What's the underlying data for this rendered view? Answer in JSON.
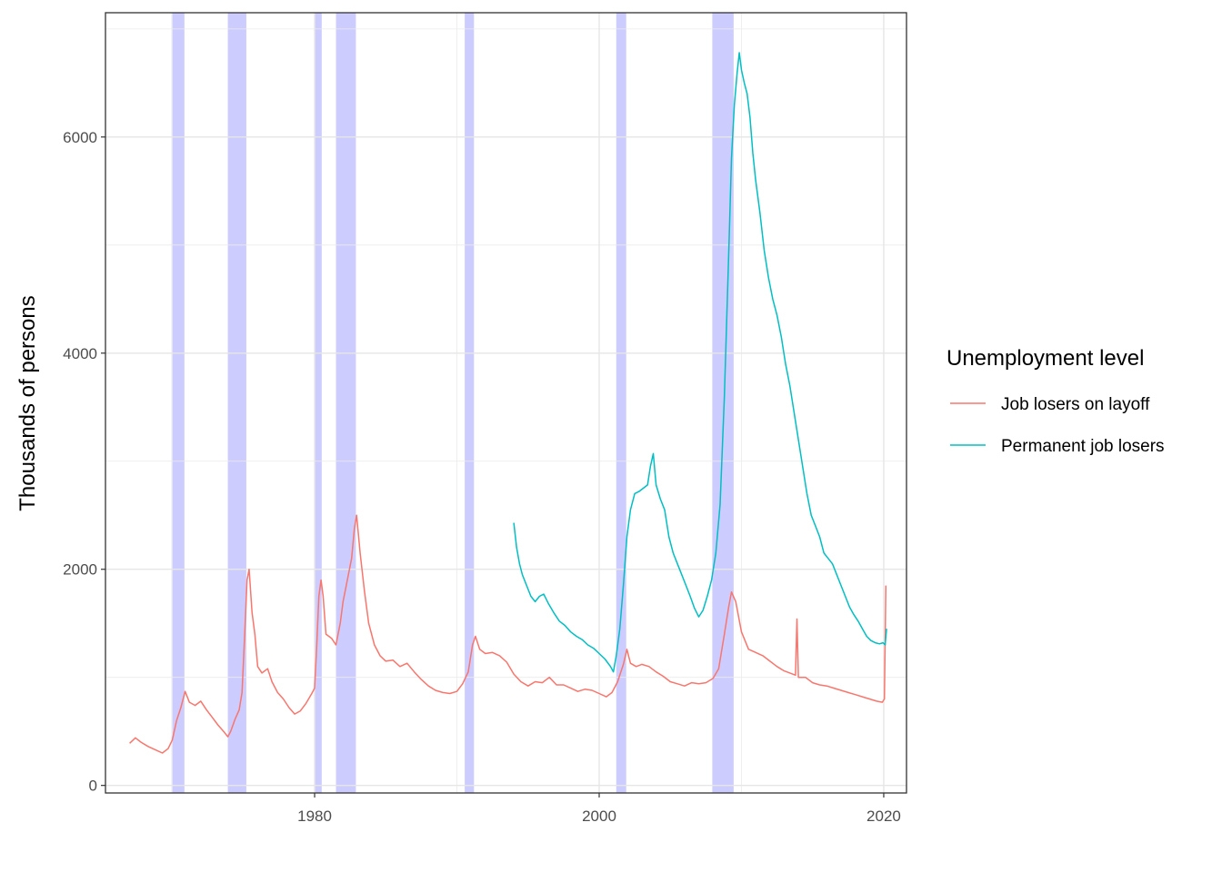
{
  "chart_data": {
    "type": "line",
    "title": "",
    "xlabel": "",
    "ylabel": "Thousands of persons",
    "xlim": [
      1965.3,
      2021.6
    ],
    "ylim": [
      -70,
      7150
    ],
    "x_ticks": [
      1980,
      2000,
      2020
    ],
    "x_tick_labels": [
      "1980",
      "2000",
      "2020"
    ],
    "y_ticks": [
      0,
      2000,
      4000,
      6000
    ],
    "y_tick_labels": [
      "0",
      "2000",
      "4000",
      "6000"
    ],
    "grid": true,
    "legend": {
      "title": "Unemployment level",
      "position": "right"
    },
    "recession_color": "#0000FF",
    "recessions": [
      {
        "start": 1969.95,
        "end": 1970.85
      },
      {
        "start": 1973.9,
        "end": 1975.2
      },
      {
        "start": 1980.0,
        "end": 1980.5
      },
      {
        "start": 1981.5,
        "end": 1982.9
      },
      {
        "start": 1990.55,
        "end": 1991.2
      },
      {
        "start": 2001.2,
        "end": 2001.9
      },
      {
        "start": 2007.95,
        "end": 2009.45
      }
    ],
    "series": [
      {
        "name": "Job losers on layoff",
        "color": "#F8766D",
        "points": [
          [
            1967.0,
            390
          ],
          [
            1967.4,
            440
          ],
          [
            1967.8,
            400
          ],
          [
            1968.3,
            360
          ],
          [
            1968.8,
            330
          ],
          [
            1969.3,
            300
          ],
          [
            1969.7,
            340
          ],
          [
            1970.0,
            420
          ],
          [
            1970.3,
            600
          ],
          [
            1970.6,
            720
          ],
          [
            1970.9,
            870
          ],
          [
            1971.2,
            770
          ],
          [
            1971.6,
            740
          ],
          [
            1972.0,
            780
          ],
          [
            1972.4,
            700
          ],
          [
            1972.8,
            630
          ],
          [
            1973.2,
            560
          ],
          [
            1973.6,
            500
          ],
          [
            1973.9,
            450
          ],
          [
            1974.1,
            500
          ],
          [
            1974.4,
            610
          ],
          [
            1974.7,
            700
          ],
          [
            1974.9,
            860
          ],
          [
            1975.1,
            1450
          ],
          [
            1975.25,
            1900
          ],
          [
            1975.4,
            2000
          ],
          [
            1975.6,
            1600
          ],
          [
            1975.8,
            1400
          ],
          [
            1976.0,
            1100
          ],
          [
            1976.3,
            1040
          ],
          [
            1976.7,
            1080
          ],
          [
            1977.0,
            960
          ],
          [
            1977.4,
            860
          ],
          [
            1977.8,
            800
          ],
          [
            1978.2,
            720
          ],
          [
            1978.6,
            660
          ],
          [
            1979.0,
            690
          ],
          [
            1979.4,
            760
          ],
          [
            1979.8,
            850
          ],
          [
            1980.0,
            900
          ],
          [
            1980.15,
            1300
          ],
          [
            1980.3,
            1750
          ],
          [
            1980.45,
            1900
          ],
          [
            1980.6,
            1750
          ],
          [
            1980.8,
            1400
          ],
          [
            1981.2,
            1360
          ],
          [
            1981.5,
            1300
          ],
          [
            1981.8,
            1500
          ],
          [
            1982.0,
            1700
          ],
          [
            1982.3,
            1900
          ],
          [
            1982.6,
            2100
          ],
          [
            1982.8,
            2380
          ],
          [
            1982.95,
            2500
          ],
          [
            1983.2,
            2150
          ],
          [
            1983.5,
            1800
          ],
          [
            1983.8,
            1500
          ],
          [
            1984.2,
            1300
          ],
          [
            1984.6,
            1200
          ],
          [
            1985.0,
            1150
          ],
          [
            1985.5,
            1160
          ],
          [
            1986.0,
            1100
          ],
          [
            1986.5,
            1130
          ],
          [
            1987.0,
            1050
          ],
          [
            1987.5,
            980
          ],
          [
            1988.0,
            920
          ],
          [
            1988.5,
            880
          ],
          [
            1989.0,
            860
          ],
          [
            1989.5,
            850
          ],
          [
            1990.0,
            870
          ],
          [
            1990.4,
            940
          ],
          [
            1990.8,
            1050
          ],
          [
            1991.1,
            1300
          ],
          [
            1991.3,
            1380
          ],
          [
            1991.6,
            1260
          ],
          [
            1992.0,
            1220
          ],
          [
            1992.5,
            1230
          ],
          [
            1993.0,
            1200
          ],
          [
            1993.5,
            1140
          ],
          [
            1994.0,
            1030
          ],
          [
            1994.5,
            960
          ],
          [
            1995.0,
            920
          ],
          [
            1995.5,
            960
          ],
          [
            1996.0,
            950
          ],
          [
            1996.5,
            1000
          ],
          [
            1997.0,
            930
          ],
          [
            1997.5,
            930
          ],
          [
            1998.0,
            900
          ],
          [
            1998.5,
            870
          ],
          [
            1999.0,
            890
          ],
          [
            1999.5,
            880
          ],
          [
            2000.0,
            850
          ],
          [
            2000.5,
            820
          ],
          [
            2000.9,
            860
          ],
          [
            2001.3,
            960
          ],
          [
            2001.7,
            1120
          ],
          [
            2001.95,
            1260
          ],
          [
            2002.2,
            1130
          ],
          [
            2002.6,
            1100
          ],
          [
            2003.0,
            1120
          ],
          [
            2003.5,
            1100
          ],
          [
            2004.0,
            1050
          ],
          [
            2004.5,
            1010
          ],
          [
            2005.0,
            960
          ],
          [
            2005.5,
            940
          ],
          [
            2006.0,
            920
          ],
          [
            2006.5,
            950
          ],
          [
            2007.0,
            940
          ],
          [
            2007.5,
            950
          ],
          [
            2008.0,
            990
          ],
          [
            2008.4,
            1080
          ],
          [
            2008.8,
            1400
          ],
          [
            2009.1,
            1650
          ],
          [
            2009.3,
            1790
          ],
          [
            2009.6,
            1700
          ],
          [
            2010.0,
            1420
          ],
          [
            2010.5,
            1260
          ],
          [
            2011.0,
            1230
          ],
          [
            2011.5,
            1200
          ],
          [
            2012.0,
            1150
          ],
          [
            2012.5,
            1100
          ],
          [
            2013.0,
            1060
          ],
          [
            2013.4,
            1040
          ],
          [
            2013.8,
            1020
          ],
          [
            2013.9,
            1540
          ],
          [
            2014.0,
            1000
          ],
          [
            2014.5,
            1000
          ],
          [
            2015.0,
            950
          ],
          [
            2015.5,
            930
          ],
          [
            2016.0,
            920
          ],
          [
            2016.5,
            900
          ],
          [
            2017.0,
            880
          ],
          [
            2017.5,
            860
          ],
          [
            2018.0,
            840
          ],
          [
            2018.5,
            820
          ],
          [
            2019.0,
            800
          ],
          [
            2019.5,
            780
          ],
          [
            2019.9,
            770
          ],
          [
            2020.05,
            800
          ],
          [
            2020.15,
            1850
          ]
        ]
      },
      {
        "name": "Permanent job losers",
        "color": "#00BFC4",
        "points": [
          [
            1994.0,
            2430
          ],
          [
            1994.2,
            2200
          ],
          [
            1994.4,
            2050
          ],
          [
            1994.6,
            1950
          ],
          [
            1994.9,
            1850
          ],
          [
            1995.2,
            1750
          ],
          [
            1995.5,
            1700
          ],
          [
            1995.8,
            1750
          ],
          [
            1996.1,
            1770
          ],
          [
            1996.4,
            1690
          ],
          [
            1996.8,
            1600
          ],
          [
            1997.2,
            1520
          ],
          [
            1997.6,
            1480
          ],
          [
            1998.0,
            1420
          ],
          [
            1998.4,
            1380
          ],
          [
            1998.8,
            1350
          ],
          [
            1999.2,
            1300
          ],
          [
            1999.6,
            1270
          ],
          [
            2000.0,
            1220
          ],
          [
            2000.4,
            1170
          ],
          [
            2000.8,
            1100
          ],
          [
            2001.0,
            1050
          ],
          [
            2001.2,
            1200
          ],
          [
            2001.45,
            1450
          ],
          [
            2001.7,
            1850
          ],
          [
            2001.95,
            2300
          ],
          [
            2002.2,
            2550
          ],
          [
            2002.5,
            2700
          ],
          [
            2002.8,
            2720
          ],
          [
            2003.1,
            2750
          ],
          [
            2003.4,
            2780
          ],
          [
            2003.6,
            2950
          ],
          [
            2003.8,
            3070
          ],
          [
            2004.0,
            2780
          ],
          [
            2004.3,
            2650
          ],
          [
            2004.6,
            2550
          ],
          [
            2004.9,
            2300
          ],
          [
            2005.2,
            2150
          ],
          [
            2005.5,
            2050
          ],
          [
            2005.8,
            1950
          ],
          [
            2006.1,
            1850
          ],
          [
            2006.4,
            1750
          ],
          [
            2006.7,
            1640
          ],
          [
            2007.0,
            1560
          ],
          [
            2007.3,
            1620
          ],
          [
            2007.6,
            1750
          ],
          [
            2007.9,
            1900
          ],
          [
            2008.2,
            2150
          ],
          [
            2008.5,
            2600
          ],
          [
            2008.8,
            3600
          ],
          [
            2009.1,
            4900
          ],
          [
            2009.3,
            5800
          ],
          [
            2009.5,
            6300
          ],
          [
            2009.7,
            6600
          ],
          [
            2009.85,
            6780
          ],
          [
            2010.0,
            6620
          ],
          [
            2010.2,
            6500
          ],
          [
            2010.4,
            6400
          ],
          [
            2010.6,
            6180
          ],
          [
            2010.8,
            5850
          ],
          [
            2011.0,
            5600
          ],
          [
            2011.3,
            5300
          ],
          [
            2011.6,
            4950
          ],
          [
            2011.9,
            4700
          ],
          [
            2012.2,
            4500
          ],
          [
            2012.5,
            4350
          ],
          [
            2012.8,
            4150
          ],
          [
            2013.1,
            3900
          ],
          [
            2013.4,
            3700
          ],
          [
            2013.7,
            3450
          ],
          [
            2014.0,
            3200
          ],
          [
            2014.3,
            2950
          ],
          [
            2014.6,
            2700
          ],
          [
            2014.9,
            2500
          ],
          [
            2015.2,
            2400
          ],
          [
            2015.5,
            2300
          ],
          [
            2015.8,
            2150
          ],
          [
            2016.1,
            2100
          ],
          [
            2016.4,
            2050
          ],
          [
            2016.7,
            1950
          ],
          [
            2017.0,
            1850
          ],
          [
            2017.3,
            1750
          ],
          [
            2017.6,
            1650
          ],
          [
            2017.9,
            1580
          ],
          [
            2018.2,
            1520
          ],
          [
            2018.5,
            1450
          ],
          [
            2018.8,
            1380
          ],
          [
            2019.1,
            1340
          ],
          [
            2019.4,
            1320
          ],
          [
            2019.7,
            1310
          ],
          [
            2019.95,
            1320
          ],
          [
            2020.1,
            1300
          ],
          [
            2020.2,
            1450
          ]
        ]
      }
    ]
  }
}
